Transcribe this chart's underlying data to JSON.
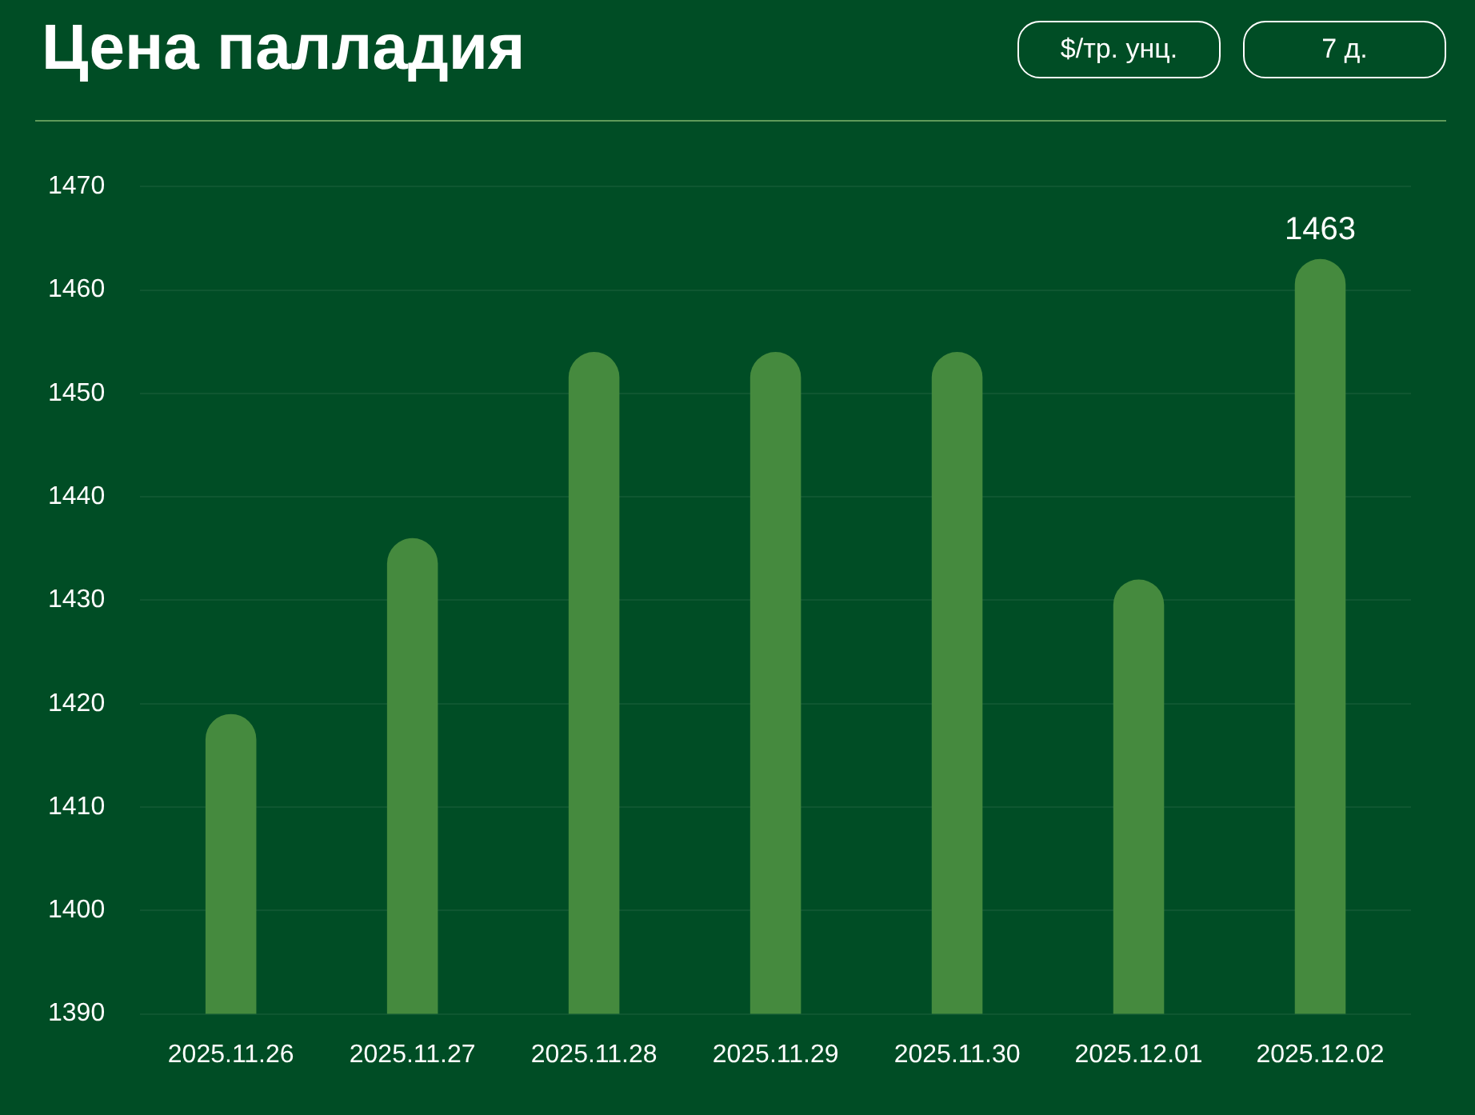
{
  "chart_data": {
    "type": "bar",
    "title": "Цена палладия",
    "annotations": [
      "$/тр. унц.",
      "7 д."
    ],
    "categories": [
      "2025.11.26",
      "2025.11.27",
      "2025.11.28",
      "2025.11.29",
      "2025.11.30",
      "2025.12.01",
      "2025.12.02"
    ],
    "values": [
      1419,
      1436,
      1454,
      1454,
      1454,
      1432,
      1463
    ],
    "value_labels": [
      null,
      null,
      null,
      null,
      null,
      null,
      "1463"
    ],
    "color": "#458a3e",
    "ylim": [
      1390,
      1470
    ],
    "yticks": [
      1390,
      1400,
      1410,
      1420,
      1430,
      1440,
      1450,
      1460,
      1470
    ],
    "grid": "y",
    "legend": false
  }
}
